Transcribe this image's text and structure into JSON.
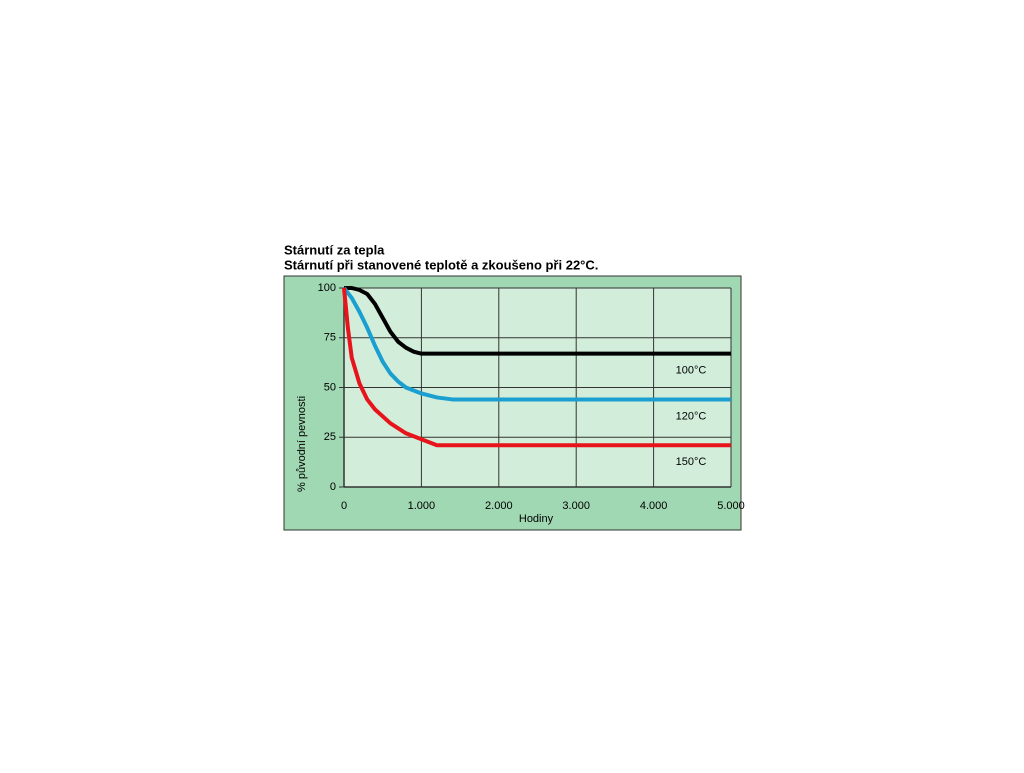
{
  "chart_data": {
    "type": "line",
    "title": "Stárnutí za tepla",
    "subtitle": "Stárnutí při stanovené teplotě a zkoušeno při 22°C.",
    "x_label": "Hodiny",
    "y_label": "% původní pevnosti",
    "xlim": [
      0,
      5000
    ],
    "xticks": [
      0,
      {
        "value": 1000,
        "label": "1.000"
      },
      {
        "value": 2000,
        "label": "2.000"
      },
      {
        "value": 3000,
        "label": "3.000"
      },
      {
        "value": 4000,
        "label": "4.000"
      },
      {
        "value": 5000,
        "label": "5.000"
      }
    ],
    "ylim": [
      0,
      100
    ],
    "yticks": [
      0,
      25,
      50,
      75,
      100
    ],
    "grid": true,
    "series": [
      {
        "name": "100°C",
        "color": "#000000",
        "x": [
          0,
          100,
          200,
          300,
          400,
          500,
          600,
          700,
          800,
          900,
          1000,
          1200,
          5000
        ],
        "values": [
          100,
          100,
          99,
          97,
          92,
          85,
          78,
          73,
          70,
          68,
          67,
          67,
          67
        ]
      },
      {
        "name": "120°C",
        "color": "#1a9fd0",
        "x": [
          0,
          100,
          200,
          300,
          400,
          500,
          600,
          700,
          800,
          1000,
          1200,
          1400,
          5000
        ],
        "values": [
          100,
          95,
          88,
          80,
          71,
          63,
          57,
          53,
          50,
          47,
          45,
          44,
          44
        ]
      },
      {
        "name": "150°C",
        "color": "#e8141b",
        "x": [
          0,
          50,
          100,
          200,
          300,
          400,
          600,
          800,
          1000,
          1200,
          5000
        ],
        "values": [
          100,
          80,
          65,
          52,
          44,
          39,
          32,
          27,
          24,
          21,
          21
        ]
      }
    ]
  }
}
